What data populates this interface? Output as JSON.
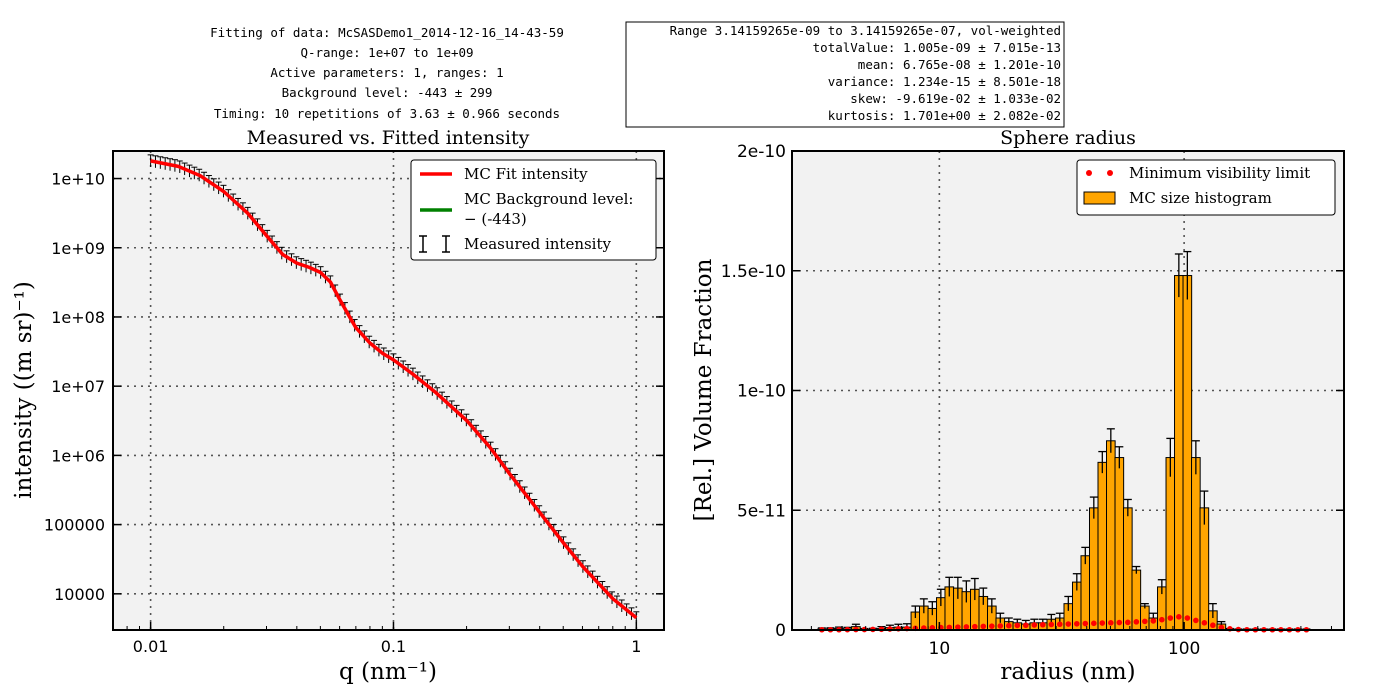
{
  "info_left": [
    "Fitting of data: McSASDemo1_2014-12-16_14-43-59",
    "Q-range: 1e+07 to 1e+09",
    "Active parameters: 1, ranges: 1",
    "Background level: -443 ± 299",
    "Timing: 10 repetitions of 3.63 ± 0.966 seconds"
  ],
  "info_right": [
    "Range 3.14159265e-09 to 3.14159265e-07, vol-weighted",
    "totalValue:  1.005e-09 ± 7.015e-13",
    "mean:  6.765e-08 ± 1.201e-10",
    "variance:  1.234e-15 ± 8.501e-18",
    "skew:  -9.619e-02 ± 1.033e-02",
    "kurtosis:  1.701e+00 ± 2.082e-02"
  ],
  "colors": {
    "fit": "#ff0000",
    "background": "#008000",
    "hist": "#ffa500",
    "minvis": "#ff0000",
    "plot_bg": "#f2f2f2"
  },
  "chart_data": [
    {
      "type": "line",
      "title": "Measured vs. Fitted intensity",
      "xlabel": "q (nm⁻¹)",
      "ylabel": "intensity ((m sr)⁻¹)",
      "xscale": "log",
      "yscale": "log",
      "xlim": [
        0.007,
        1.3
      ],
      "ylim": [
        3000,
        25000000000
      ],
      "x_ticks": [
        0.01,
        0.1,
        1
      ],
      "x_tick_labels": [
        "0.01",
        "0.1",
        "1"
      ],
      "y_ticks": [
        10000,
        100000,
        1000000,
        10000000,
        100000000,
        1000000000,
        10000000000
      ],
      "y_tick_labels": [
        "10000",
        "100000",
        "1e+06",
        "1e+07",
        "1e+08",
        "1e+09",
        "1e+10"
      ],
      "grid": true,
      "legend_position": "top-right",
      "legend": [
        "MC Fit intensity",
        "MC Background level:",
        "− (-443)",
        "Measured intensity"
      ],
      "series": [
        {
          "name": "MC Fit intensity",
          "x": [
            0.01,
            0.013,
            0.016,
            0.02,
            0.025,
            0.03,
            0.035,
            0.04,
            0.045,
            0.05,
            0.055,
            0.06,
            0.065,
            0.07,
            0.08,
            0.09,
            0.1,
            0.12,
            0.15,
            0.2,
            0.25,
            0.3,
            0.4,
            0.5,
            0.6,
            0.8,
            1.0
          ],
          "y": [
            18000000000,
            15000000000,
            11000000000,
            6500000000,
            3200000000,
            1500000000,
            800000000,
            600000000,
            520000000,
            440000000,
            320000000,
            180000000,
            110000000,
            70000000,
            42000000,
            30000000,
            24000000,
            15000000,
            8000000,
            3200000,
            1300000,
            550000,
            150000,
            55000,
            25000,
            8500,
            4500
          ]
        },
        {
          "name": "Measured intensity",
          "x": [
            0.01,
            0.013,
            0.016,
            0.02,
            0.025,
            0.03,
            0.035,
            0.04,
            0.045,
            0.05,
            0.055,
            0.06,
            0.065,
            0.07,
            0.08,
            0.09,
            0.1,
            0.12,
            0.15,
            0.2,
            0.25,
            0.3,
            0.4,
            0.5,
            0.6,
            0.8,
            1.0
          ],
          "y": [
            18000000000,
            15000000000,
            11000000000,
            6500000000,
            3200000000,
            1500000000,
            800000000,
            600000000,
            520000000,
            440000000,
            320000000,
            180000000,
            110000000,
            70000000,
            42000000,
            30000000,
            24000000,
            15000000,
            8000000,
            3200000,
            1300000,
            550000,
            150000,
            55000,
            25000,
            8500,
            4500
          ]
        }
      ]
    },
    {
      "type": "bar",
      "title": "Sphere radius",
      "xlabel": "radius (nm)",
      "ylabel": "[Rel.] Volume Fraction",
      "xscale": "log",
      "xlim": [
        2.5,
        450
      ],
      "ylim": [
        0,
        2e-10
      ],
      "x_ticks": [
        10,
        100
      ],
      "x_tick_labels": [
        "10",
        "100"
      ],
      "y_ticks": [
        0,
        5e-11,
        1e-10,
        1.5e-10,
        2e-10
      ],
      "y_tick_labels": [
        "0",
        "5e-11",
        "1e-10",
        "1.5e-10",
        "2e-10"
      ],
      "grid": true,
      "legend_position": "top-right",
      "legend": [
        "Minimum visibility limit",
        "MC size histogram"
      ],
      "bins": [
        [
          3.31,
          3.5e-13,
          5e-13
        ],
        [
          3.59,
          4e-13,
          5e-13
        ],
        [
          3.89,
          6e-13,
          6e-13
        ],
        [
          4.21,
          5e-13,
          6e-13
        ],
        [
          4.56,
          1.4e-12,
          1e-12
        ],
        [
          4.94,
          2e-13,
          4e-13
        ],
        [
          5.35,
          3e-13,
          4e-13
        ],
        [
          5.8,
          6e-13,
          8e-13
        ],
        [
          6.28,
          1e-12,
          1e-12
        ],
        [
          6.8,
          1.2e-12,
          1.2e-12
        ],
        [
          7.37,
          1.2e-12,
          1.4e-12
        ],
        [
          7.98,
          7.5e-12,
          2.5e-12
        ],
        [
          8.64,
          1e-11,
          3e-12
        ],
        [
          9.36,
          9e-12,
          2.8e-12
        ],
        [
          10.14,
          1.35e-11,
          3.5e-12
        ],
        [
          10.98,
          1.8e-11,
          4e-12
        ],
        [
          11.9,
          1.75e-11,
          4.5e-12
        ],
        [
          12.89,
          1.6e-11,
          4.5e-12
        ],
        [
          13.96,
          1.7e-11,
          4.5e-12
        ],
        [
          15.12,
          1.4e-11,
          3.5e-12
        ],
        [
          16.38,
          1e-11,
          3e-12
        ],
        [
          17.74,
          5e-12,
          2e-12
        ],
        [
          19.22,
          3.5e-12,
          1.5e-12
        ],
        [
          20.82,
          3e-12,
          1.5e-12
        ],
        [
          22.55,
          2.5e-12,
          1.5e-12
        ],
        [
          24.43,
          3e-12,
          1.5e-12
        ],
        [
          26.46,
          3e-12,
          1.5e-12
        ],
        [
          28.67,
          4.5e-12,
          2e-12
        ],
        [
          31.05,
          5e-12,
          2e-12
        ],
        [
          33.64,
          1.1e-11,
          3e-12
        ],
        [
          36.44,
          2e-11,
          3.5e-12
        ],
        [
          39.47,
          3.1e-11,
          3.5e-12
        ],
        [
          42.76,
          5.1e-11,
          4.5e-12
        ],
        [
          46.32,
          7e-11,
          4.5e-12
        ],
        [
          50.18,
          7.9e-11,
          5e-12
        ],
        [
          54.36,
          7.2e-11,
          4.5e-12
        ],
        [
          58.88,
          5.1e-11,
          3.5e-12
        ],
        [
          63.79,
          2.5e-11,
          1.5e-12
        ],
        [
          69.1,
          1e-11,
          1e-12
        ],
        [
          74.85,
          5e-12,
          2e-12
        ],
        [
          81.09,
          1.8e-11,
          3e-12
        ],
        [
          87.84,
          7.2e-11,
          8e-12
        ],
        [
          95.16,
          1.48e-10,
          9e-12
        ],
        [
          103.08,
          1.48e-10,
          1e-11
        ],
        [
          111.67,
          7.2e-11,
          7e-12
        ],
        [
          120.97,
          5.1e-11,
          7e-12
        ],
        [
          131.05,
          8e-12,
          3e-12
        ],
        [
          141.97,
          2.5e-12,
          1e-12
        ],
        [
          153.79,
          3e-13,
          3e-13
        ],
        [
          166.6,
          2e-13,
          2e-13
        ],
        [
          180.48,
          2e-13,
          2e-13
        ],
        [
          195.51,
          2e-13,
          2e-13
        ],
        [
          211.79,
          2e-13,
          2e-13
        ],
        [
          229.44,
          2e-13,
          2e-13
        ],
        [
          248.55,
          2e-13,
          2e-13
        ],
        [
          269.25,
          2e-13,
          2e-13
        ],
        [
          291.68,
          2e-13,
          2e-13
        ],
        [
          315.98,
          2e-13,
          2e-13
        ]
      ],
      "bins_format": [
        "radius_nm",
        "volume_fraction",
        "error"
      ],
      "min_visibility": {
        "x": [
          3.31,
          3.59,
          3.89,
          4.21,
          4.56,
          4.94,
          5.35,
          5.8,
          6.28,
          6.8,
          7.37,
          7.98,
          8.64,
          9.36,
          10.14,
          10.98,
          11.9,
          12.89,
          13.96,
          15.12,
          16.38,
          17.74,
          19.22,
          20.82,
          22.55,
          24.43,
          26.46,
          28.67,
          31.05,
          33.64,
          36.44,
          39.47,
          42.76,
          46.32,
          50.18,
          54.36,
          58.88,
          63.79,
          69.1,
          74.85,
          81.09,
          87.84,
          95.16,
          103.08,
          111.67,
          120.97,
          131.05,
          141.97,
          153.79,
          166.6,
          180.48,
          195.51,
          211.79,
          229.44,
          248.55,
          269.25,
          291.68,
          315.98
        ],
        "y": [
          1e-13,
          1e-13,
          1e-13,
          1.5e-13,
          2e-13,
          2e-13,
          2.5e-13,
          3e-13,
          4e-13,
          5e-13,
          6e-13,
          7e-13,
          8e-13,
          9e-13,
          1e-12,
          1.1e-12,
          1.2e-12,
          1.3e-12,
          1.4e-12,
          1.5e-12,
          1.6e-12,
          1.7e-12,
          1.8e-12,
          1.9e-12,
          2e-12,
          2.1e-12,
          2.2e-12,
          2.3e-12,
          2.4e-12,
          2.5e-12,
          2.6e-12,
          2.7e-12,
          2.8e-12,
          2.9e-12,
          3e-12,
          3.1e-12,
          3.2e-12,
          3.4e-12,
          3.6e-12,
          3.8e-12,
          4.3e-12,
          5e-12,
          5.5e-12,
          5e-12,
          4e-12,
          3e-12,
          2e-12,
          1e-12,
          5e-13,
          2e-13,
          1e-13,
          1e-13,
          1e-13,
          1e-13,
          1e-13,
          1e-13,
          1e-13,
          1e-13
        ]
      }
    }
  ]
}
